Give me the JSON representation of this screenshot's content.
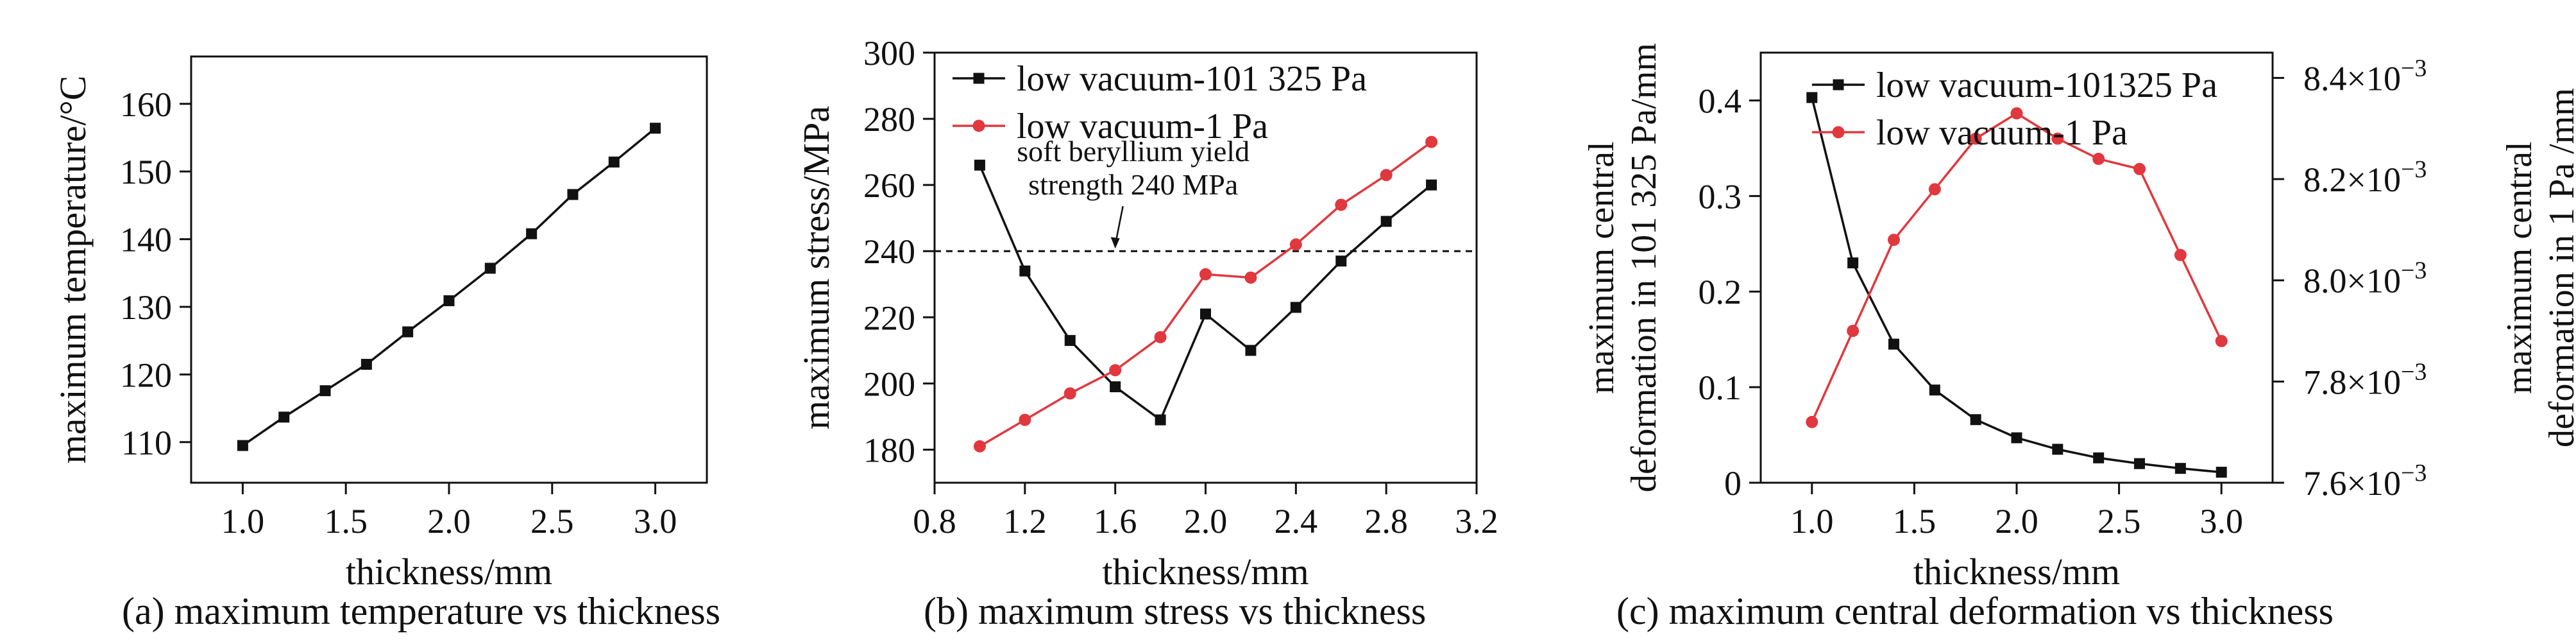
{
  "colors": {
    "black": "#111111",
    "red": "#e0383e"
  },
  "chart_data": [
    {
      "id": "a",
      "type": "line",
      "caption": "(a) maximum temperature vs thickness",
      "xlabel": "thickness/mm",
      "ylabel": "maximum temperature/°C",
      "xlim": [
        0.75,
        3.25
      ],
      "ylim": [
        104,
        167
      ],
      "xticks": [
        1.0,
        1.5,
        2.0,
        2.5,
        3.0
      ],
      "xtick_labels": [
        "1.0",
        "1.5",
        "2.0",
        "2.5",
        "3.0"
      ],
      "yticks": [
        110,
        120,
        130,
        140,
        150,
        160
      ],
      "ytick_labels": [
        "110",
        "120",
        "130",
        "140",
        "150",
        "160"
      ],
      "grid": false,
      "series": [
        {
          "color": "#111111",
          "marker": "square",
          "x": [
            1.0,
            1.2,
            1.4,
            1.6,
            1.8,
            2.0,
            2.2,
            2.4,
            2.6,
            2.8,
            3.0
          ],
          "y": [
            109.5,
            113.7,
            117.6,
            121.5,
            126.3,
            130.9,
            135.7,
            140.8,
            146.6,
            151.4,
            156.4
          ]
        }
      ]
    },
    {
      "id": "b",
      "type": "line",
      "caption": "(b) maximum stress vs thickness",
      "xlabel": "thickness/mm",
      "ylabel": "maximum stress/MPa",
      "xlim": [
        0.8,
        3.2
      ],
      "ylim": [
        170,
        300
      ],
      "xticks": [
        0.8,
        1.2,
        1.6,
        2.0,
        2.4,
        2.8,
        3.2
      ],
      "xtick_labels": [
        "0.8",
        "1.2",
        "1.6",
        "2.0",
        "2.4",
        "2.8",
        "3.2"
      ],
      "yticks": [
        180,
        200,
        220,
        240,
        260,
        280,
        300
      ],
      "ytick_labels": [
        "180",
        "200",
        "220",
        "240",
        "260",
        "280",
        "300"
      ],
      "grid": false,
      "legend_position": "top-left",
      "reference_line": {
        "y": 240,
        "style": "dashed"
      },
      "annotation": {
        "lines": [
          "soft beryllium yield",
          "strength 240 MPa"
        ],
        "arrow_to": [
          1.6,
          240
        ]
      },
      "series": [
        {
          "name": "low vacuum-101 325 Pa",
          "color": "#111111",
          "marker": "square",
          "x": [
            1.0,
            1.2,
            1.4,
            1.6,
            1.8,
            2.0,
            2.2,
            2.4,
            2.6,
            2.8,
            3.0
          ],
          "y": [
            266,
            234,
            213,
            199,
            189,
            221,
            210,
            223,
            237,
            249,
            260
          ]
        },
        {
          "name": "low vacuum-1 Pa",
          "color": "#e0383e",
          "marker": "circle",
          "x": [
            1.0,
            1.2,
            1.4,
            1.6,
            1.8,
            2.0,
            2.2,
            2.4,
            2.6,
            2.8,
            3.0
          ],
          "y": [
            181,
            189,
            197,
            204,
            214,
            233,
            232,
            242,
            254,
            263,
            273
          ]
        }
      ]
    },
    {
      "id": "c",
      "type": "line",
      "caption": "(c) maximum central deformation vs thickness",
      "xlabel": "thickness/mm",
      "ylabel": "maximum central deformation in 101 325 Pa/mm",
      "ylabel_lines": [
        "maximum central",
        "deformation in 101 325 Pa/mm"
      ],
      "y2label": "maximum central deformation in 1 Pa /mm",
      "y2label_lines": [
        "maximum central",
        "deformation in 1 Pa /mm"
      ],
      "xlim": [
        0.75,
        3.25
      ],
      "ylim": [
        0,
        0.45
      ],
      "y2lim": [
        0.0076,
        0.00845
      ],
      "xticks": [
        1.0,
        1.5,
        2.0,
        2.5,
        3.0
      ],
      "xtick_labels": [
        "1.0",
        "1.5",
        "2.0",
        "2.5",
        "3.0"
      ],
      "yticks": [
        0,
        0.1,
        0.2,
        0.3,
        0.4
      ],
      "ytick_labels": [
        "0",
        "0.1",
        "0.2",
        "0.3",
        "0.4"
      ],
      "y2ticks": [
        0.0076,
        0.0078,
        0.008,
        0.0082,
        0.0084
      ],
      "y2tick_mantissas": [
        "7.6",
        "7.8",
        "8.0",
        "8.2",
        "8.4"
      ],
      "y2tick_base": "×10",
      "y2tick_exponent": "−3",
      "grid": false,
      "legend_position": "top",
      "series": [
        {
          "name": "low vacuum-101325 Pa",
          "color": "#111111",
          "marker": "square",
          "axis": "left",
          "x": [
            1.0,
            1.2,
            1.4,
            1.6,
            1.8,
            2.0,
            2.2,
            2.4,
            2.6,
            2.8,
            3.0
          ],
          "y": [
            0.403,
            0.23,
            0.145,
            0.097,
            0.066,
            0.047,
            0.035,
            0.026,
            0.02,
            0.015,
            0.011
          ]
        },
        {
          "name": "low vacuum-1 Pa",
          "color": "#e0383e",
          "marker": "circle",
          "axis": "right",
          "x": [
            1.0,
            1.2,
            1.4,
            1.6,
            1.8,
            2.0,
            2.2,
            2.4,
            2.6,
            2.8,
            3.0
          ],
          "y": [
            0.00772,
            0.0079,
            0.00808,
            0.00818,
            0.00828,
            0.00833,
            0.00828,
            0.00824,
            0.00822,
            0.00805,
            0.00788
          ]
        }
      ]
    }
  ]
}
